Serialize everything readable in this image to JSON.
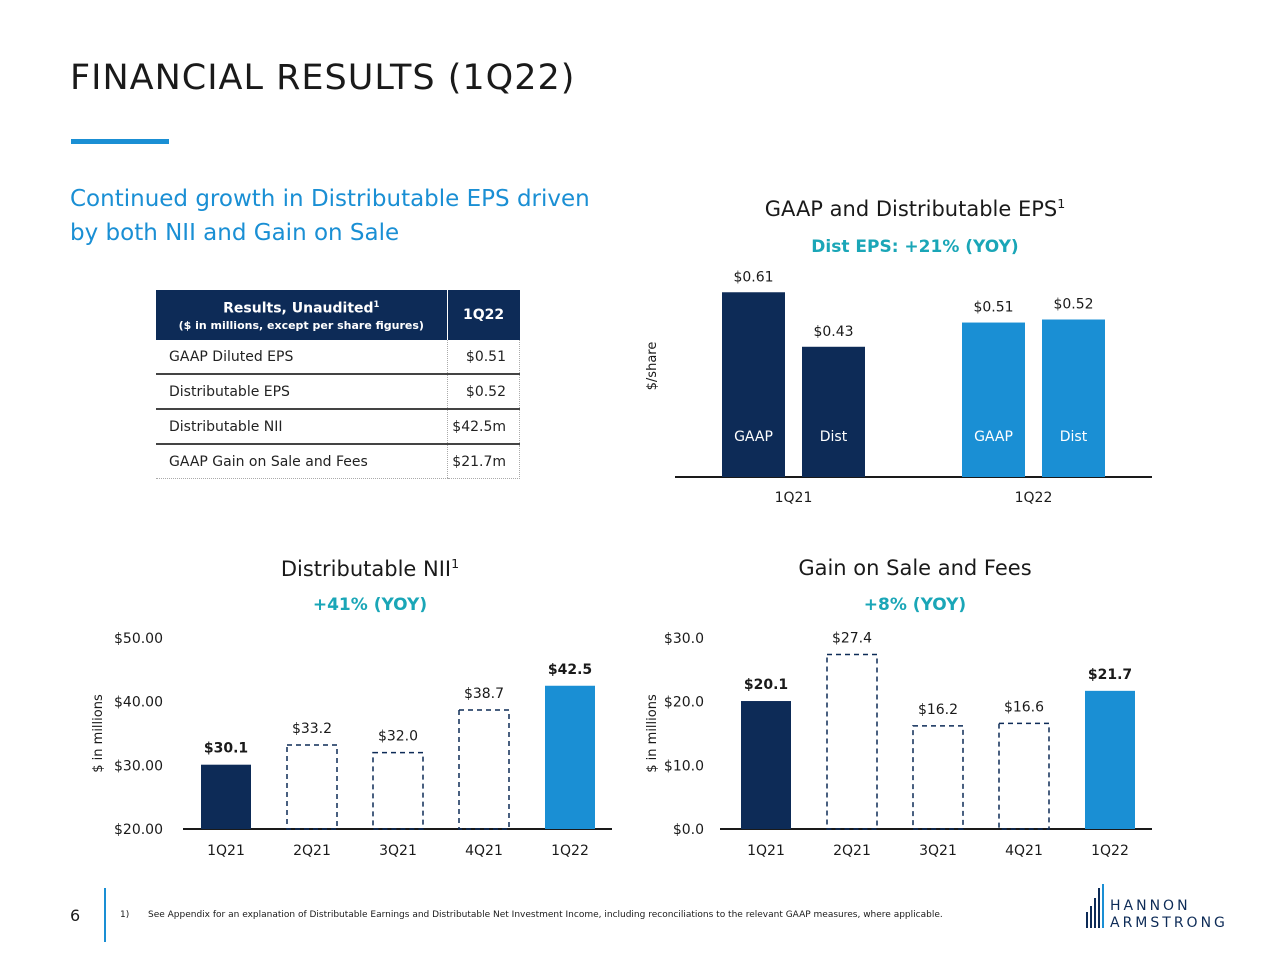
{
  "page": {
    "title": "FINANCIAL RESULTS (1Q22)",
    "subtitle": "Continued growth in Distributable EPS driven by both NII and Gain on Sale",
    "page_number": "6",
    "footnote_marker": "1)",
    "footnote": "See Appendix for an explanation of Distributable Earnings and Distributable Net Investment Income, including reconciliations to the relevant GAAP measures, where applicable.",
    "logo_line1": "HANNON",
    "logo_line2": "ARMSTRONG",
    "colors": {
      "navy": "#0d2b57",
      "blue": "#1a8fd4",
      "teal": "#1aa6b7"
    }
  },
  "table": {
    "header_main": "Results, Unaudited",
    "header_sup": "1",
    "header_sub": "($ in millions, except per share figures)",
    "header_col": "1Q22",
    "rows": [
      {
        "label": "GAAP Diluted EPS",
        "value": "$0.51"
      },
      {
        "label": "Distributable EPS",
        "value": "$0.52"
      },
      {
        "label": "Distributable NII",
        "value": "$42.5m"
      },
      {
        "label": "GAAP Gain on Sale and Fees",
        "value": "$21.7m"
      }
    ]
  },
  "chart_data": [
    {
      "type": "bar",
      "title": "GAAP and Distributable EPS",
      "title_sup": "1",
      "subtitle": "Dist EPS: +21% (YOY)",
      "ylabel": "$/share",
      "categories": [
        "1Q21",
        "1Q22"
      ],
      "series": [
        {
          "name": "GAAP",
          "values": [
            0.61,
            0.51
          ],
          "labels": [
            "$0.61",
            "$0.51"
          ]
        },
        {
          "name": "Dist",
          "values": [
            0.43,
            0.52
          ],
          "labels": [
            "$0.43",
            "$0.52"
          ]
        }
      ],
      "ylim": [
        0,
        0.7
      ],
      "grid": false
    },
    {
      "type": "bar",
      "title": "Distributable NII",
      "title_sup": "1",
      "subtitle": "+41% (YOY)",
      "ylabel": "$ in millions",
      "categories": [
        "1Q21",
        "2Q21",
        "3Q21",
        "4Q21",
        "1Q22"
      ],
      "values": [
        30.1,
        33.2,
        32.0,
        38.7,
        42.5
      ],
      "labels": [
        "$30.1",
        "$33.2",
        "$32.0",
        "$38.7",
        "$42.5"
      ],
      "styles": [
        "navy",
        "dashed",
        "dashed",
        "dashed",
        "blue"
      ],
      "label_bold": [
        true,
        false,
        false,
        false,
        true
      ],
      "yticks": [
        "$20.00",
        "$30.00",
        "$40.00",
        "$50.00"
      ],
      "ytick_values": [
        20,
        30,
        40,
        50
      ],
      "ylim": [
        20,
        50
      ],
      "grid": false
    },
    {
      "type": "bar",
      "title": "Gain on Sale and Fees",
      "subtitle": "+8% (YOY)",
      "ylabel": "$ in millions",
      "categories": [
        "1Q21",
        "2Q21",
        "3Q21",
        "4Q21",
        "1Q22"
      ],
      "values": [
        20.1,
        27.4,
        16.2,
        16.6,
        21.7
      ],
      "labels": [
        "$20.1",
        "$27.4",
        "$16.2",
        "$16.6",
        "$21.7"
      ],
      "styles": [
        "navy",
        "dashed",
        "dashed",
        "dashed",
        "blue"
      ],
      "label_bold": [
        true,
        false,
        false,
        false,
        true
      ],
      "yticks": [
        "$0.0",
        "$10.0",
        "$20.0",
        "$30.0"
      ],
      "ytick_values": [
        0,
        10,
        20,
        30
      ],
      "ylim": [
        0,
        30
      ],
      "grid": false
    }
  ]
}
